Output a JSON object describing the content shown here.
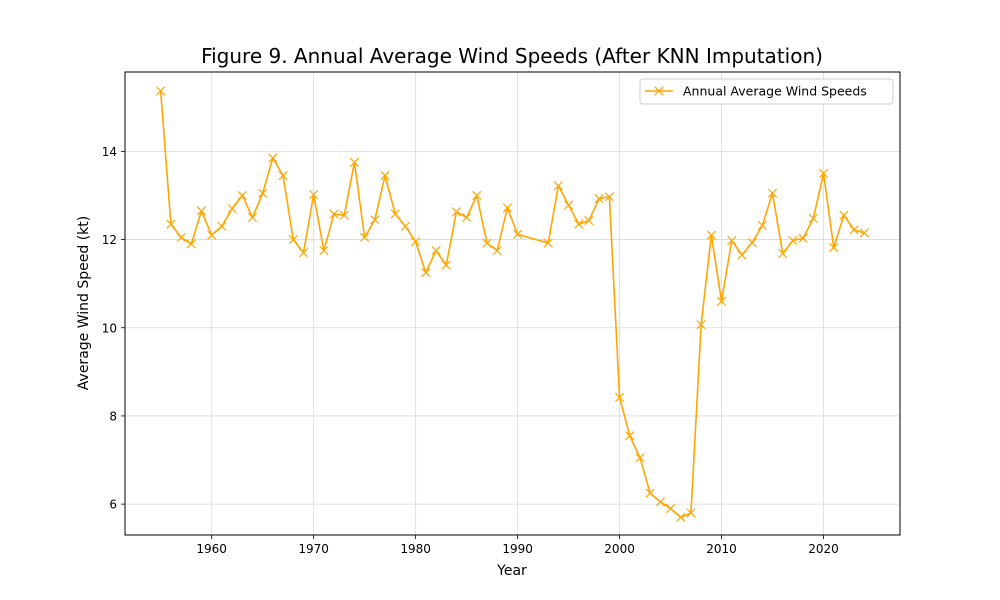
{
  "chart_data": {
    "type": "line",
    "title": "Figure 9. Annual Average Wind Speeds (After KNN Imputation)",
    "xlabel": "Year",
    "ylabel": "Average Wind Speed (kt)",
    "xlim": [
      1951.5,
      2027.5
    ],
    "ylim": [
      5.3,
      15.8
    ],
    "xticks": [
      1960,
      1970,
      1980,
      1990,
      2000,
      2010,
      2020
    ],
    "yticks": [
      6,
      8,
      10,
      12,
      14
    ],
    "grid": true,
    "legend_position": "top-right",
    "series": [
      {
        "name": "Annual Average Wind Speeds",
        "color": "#FFA500",
        "marker": "x",
        "x": [
          1955,
          1956,
          1957,
          1958,
          1959,
          1960,
          1961,
          1962,
          1963,
          1964,
          1965,
          1966,
          1967,
          1968,
          1969,
          1970,
          1971,
          1972,
          1973,
          1974,
          1975,
          1976,
          1977,
          1978,
          1979,
          1980,
          1981,
          1982,
          1983,
          1984,
          1985,
          1986,
          1987,
          1988,
          1989,
          1990,
          1993,
          1994,
          1995,
          1996,
          1997,
          1998,
          1999,
          2000,
          2001,
          2002,
          2003,
          2004,
          2005,
          2006,
          2007,
          2008,
          2009,
          2010,
          2011,
          2012,
          2013,
          2014,
          2015,
          2016,
          2017,
          2018,
          2019,
          2020,
          2021,
          2022,
          2023,
          2024
        ],
        "y": [
          15.37,
          12.35,
          12.05,
          11.9,
          12.65,
          12.1,
          12.3,
          12.7,
          13.0,
          12.5,
          13.05,
          13.85,
          13.45,
          12.0,
          11.7,
          13.02,
          11.75,
          12.58,
          12.55,
          13.75,
          12.05,
          12.45,
          13.45,
          12.58,
          12.3,
          11.95,
          11.25,
          11.75,
          11.42,
          12.63,
          12.5,
          13.0,
          11.92,
          11.75,
          12.72,
          12.12,
          11.92,
          13.22,
          12.78,
          12.35,
          12.43,
          12.93,
          12.97,
          8.42,
          7.55,
          7.05,
          6.25,
          6.05,
          5.9,
          5.7,
          5.8,
          10.07,
          12.1,
          10.6,
          11.98,
          11.65,
          11.93,
          12.32,
          13.05,
          11.68,
          11.98,
          12.03,
          12.48,
          13.5,
          11.82,
          12.55,
          12.22,
          12.15
        ]
      }
    ]
  }
}
